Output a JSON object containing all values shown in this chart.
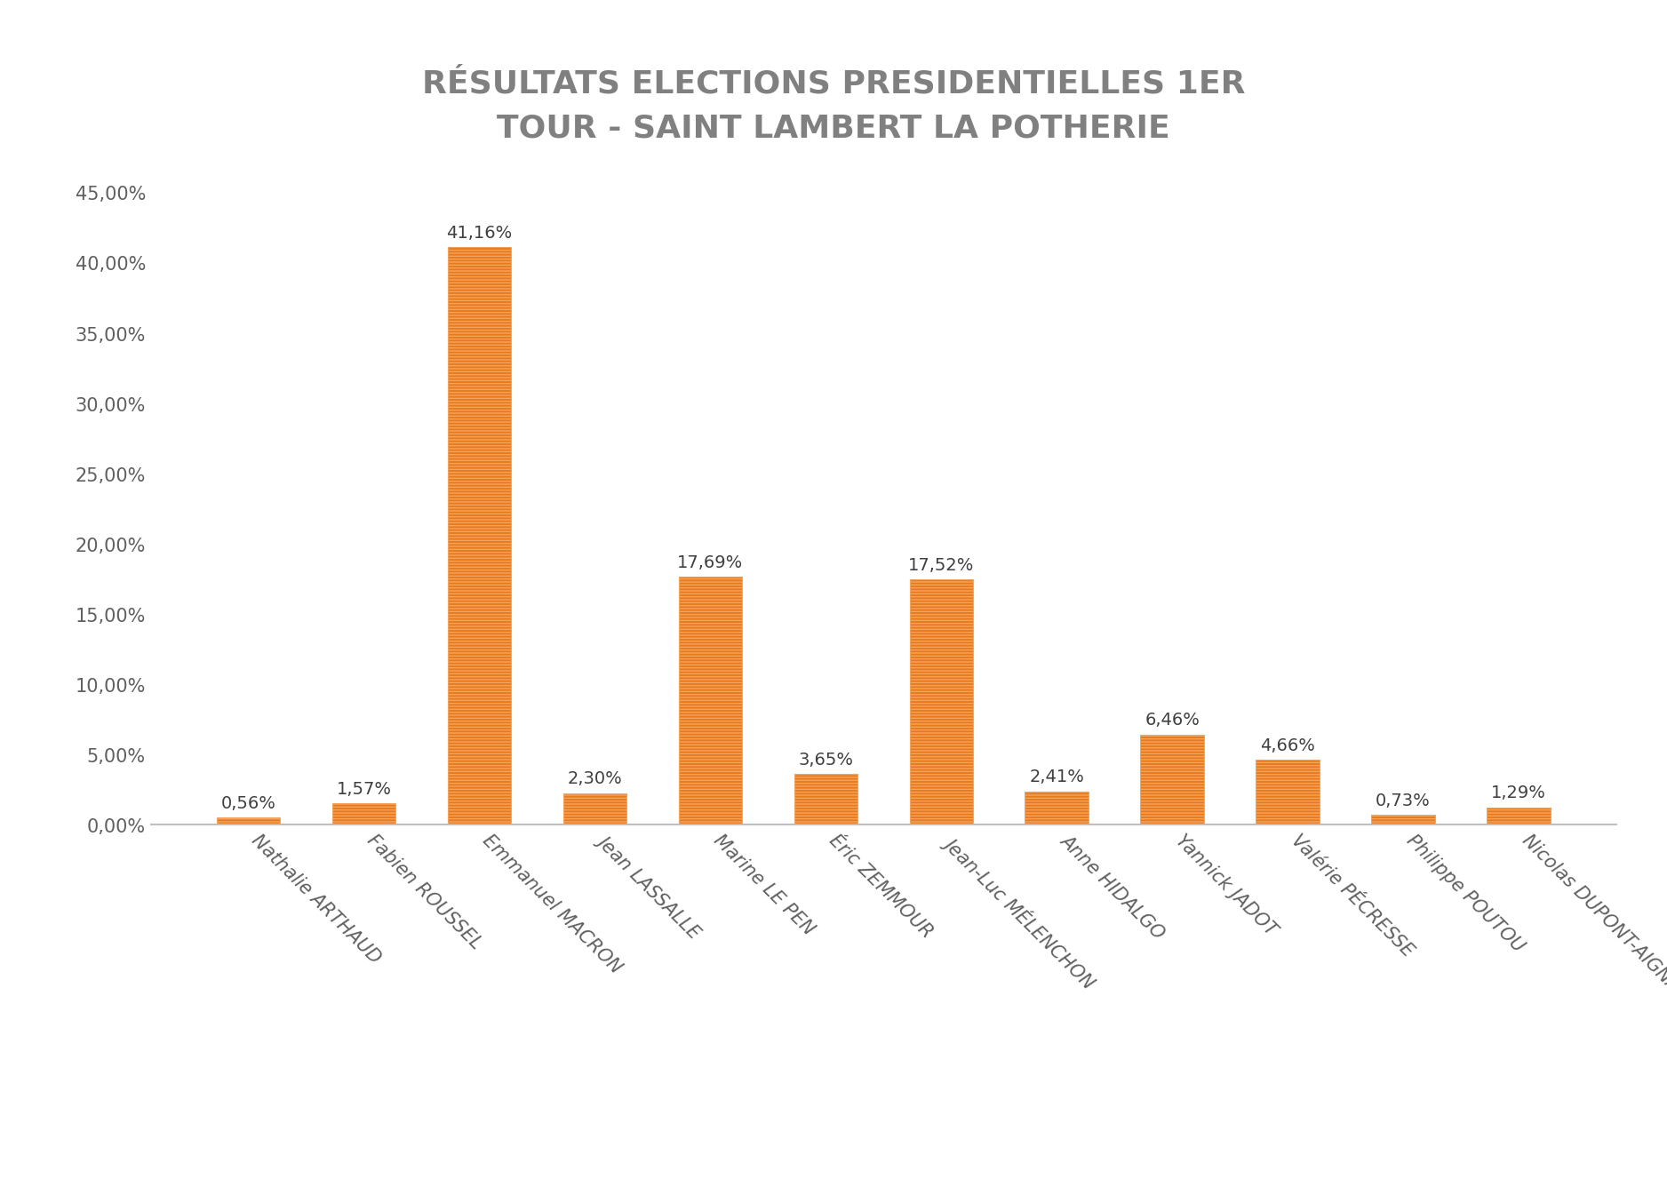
{
  "title": "RÉSULTATS ELECTIONS PRESIDENTIELLES 1ER\nTOUR - SAINT LAMBERT LA POTHERIE",
  "categories": [
    "Nathalie ARTHAUD",
    "Fabien ROUSSEL",
    "Emmanuel MACRON",
    "Jean LASSALLE",
    "Marine LE PEN",
    "Éric ZEMMOUR",
    "Jean-Luc MÉLENCHON",
    "Anne HIDALGO",
    "Yannick JADOT",
    "Valérie PÉCRESSE",
    "Philippe POUTOU",
    "Nicolas DUPONT-AIGNAN"
  ],
  "values": [
    0.56,
    1.57,
    41.16,
    2.3,
    17.69,
    3.65,
    17.52,
    2.41,
    6.46,
    4.66,
    0.73,
    1.29
  ],
  "labels": [
    "0,56%",
    "1,57%",
    "41,16%",
    "2,30%",
    "17,69%",
    "3,65%",
    "17,52%",
    "2,41%",
    "6,46%",
    "4,66%",
    "0,73%",
    "1,29%"
  ],
  "bar_color": "#E8791E",
  "bar_hatch_color": "#F5A55A",
  "background_color": "#FFFFFF",
  "title_color": "#808080",
  "tick_color": "#606060",
  "label_color": "#404040",
  "yticks": [
    0,
    5,
    10,
    15,
    20,
    25,
    30,
    35,
    40,
    45
  ],
  "ytick_labels": [
    "0,00%",
    "5,00%",
    "10,00%",
    "15,00%",
    "20,00%",
    "25,00%",
    "30,00%",
    "35,00%",
    "40,00%",
    "45,00%"
  ],
  "ylim": [
    0,
    47
  ],
  "title_fontsize": 26,
  "tick_fontsize": 15,
  "label_fontsize": 14
}
